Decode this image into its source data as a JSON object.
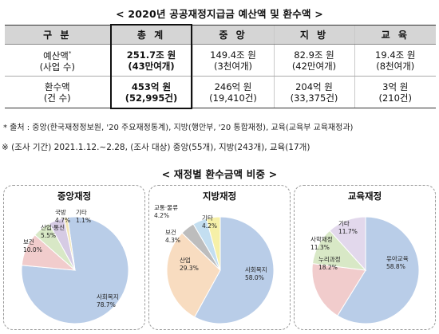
{
  "titles": {
    "top": "< 2020년 공공재정지급금 예산액 및 환수액 >",
    "mid": "< 재정별 환수금액 비중 >"
  },
  "table": {
    "headers": [
      "구 분",
      "총 계",
      "중 앙",
      "지 방",
      "교 육"
    ],
    "row1": {
      "label": "예산액",
      "label_mark": "*",
      "label_sub": "(사업 수)",
      "values": [
        "251.7조 원",
        "149.4조 원",
        "82.9조 원",
        "19.4조 원"
      ],
      "subs": [
        "(43만여개)",
        "(3천여개)",
        "(42만여개)",
        "(8천여개)"
      ]
    },
    "row2": {
      "label": "환수액",
      "label_sub": "(건 수)",
      "values": [
        "453억 원",
        "246억 원",
        "204억 원",
        "3억 원"
      ],
      "subs": [
        "(52,995건)",
        "(19,410건)",
        "(33,375건)",
        "(210건)"
      ]
    }
  },
  "notes": {
    "source": "* 출처 : 중앙(한국재정정보원, '20 주요재정통계), 지방(행안부, '20 통합재정), 교육(교육부 교육재정과)",
    "period": "※ (조사 기간) 2021.1.12.~2.28, (조사 대상) 중앙(55개), 지방(243개), 교육(17개)"
  },
  "charts": [
    {
      "title": "중앙재정",
      "chart_data": {
        "type": "pie",
        "labels": [
          "사회복지",
          "보건",
          "산업·통신",
          "국방",
          "기타"
        ],
        "values": [
          78.7,
          10.0,
          5.5,
          4.7,
          1.1
        ],
        "value_labels": [
          "78.7%",
          "10.0%",
          "5.5%",
          "4.7%",
          "1.1%"
        ],
        "colors": [
          "#b9cde8",
          "#f1cccc",
          "#d8e8c6",
          "#d6cbe4",
          "#f3e6b8"
        ]
      }
    },
    {
      "title": "지방재정",
      "chart_data": {
        "type": "pie",
        "labels": [
          "사회복지",
          "산업",
          "보건",
          "교통·물류",
          "기타"
        ],
        "values": [
          58.0,
          29.3,
          4.3,
          4.2,
          4.2
        ],
        "value_labels": [
          "58.0%",
          "29.3%",
          "4.3%",
          "4.2%",
          "4.2%"
        ],
        "colors": [
          "#b9cde8",
          "#f8dcc0",
          "#bdbdbd",
          "#c3def0",
          "#f6f0a8"
        ]
      }
    },
    {
      "title": "교육재정",
      "chart_data": {
        "type": "pie",
        "labels": [
          "유아교육",
          "누리과정",
          "사학재정",
          "기타"
        ],
        "values": [
          58.8,
          18.2,
          11.3,
          11.7
        ],
        "value_labels": [
          "58.8%",
          "18.2%",
          "11.3%",
          "11.7%"
        ],
        "colors": [
          "#b9cde8",
          "#f1cccc",
          "#d8e8c6",
          "#e2d8ec"
        ]
      }
    }
  ]
}
